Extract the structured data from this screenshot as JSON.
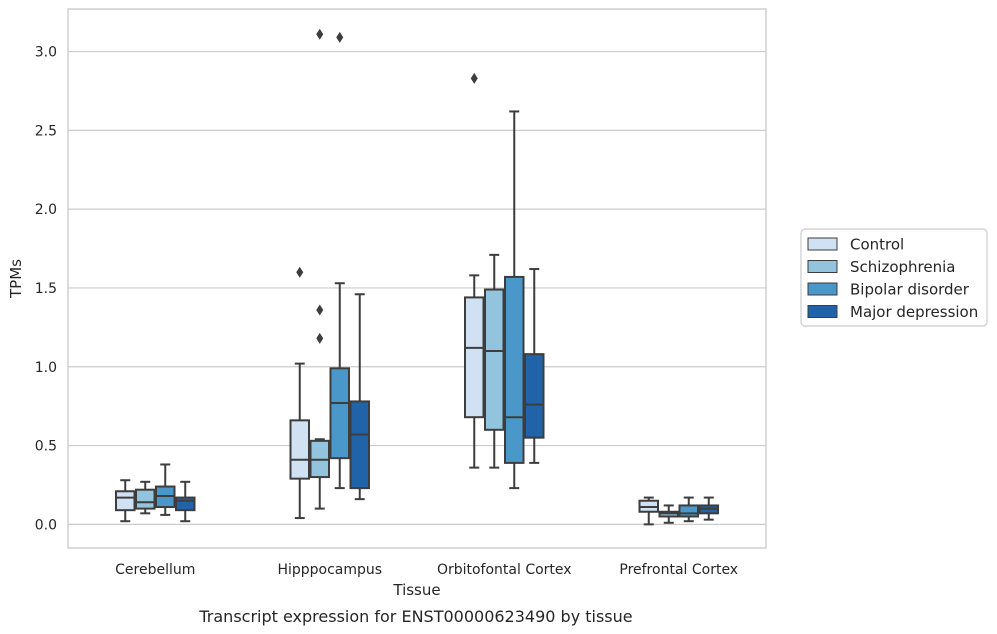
{
  "caption": "Transcript expression for ENST00000623490 by tissue",
  "chart_data": {
    "type": "boxplot",
    "xlabel": "Tissue",
    "ylabel": "TPMs",
    "ylim": [
      -0.15,
      3.27
    ],
    "yticks": [
      "0.0",
      "0.5",
      "1.0",
      "1.5",
      "2.0",
      "2.5",
      "3.0"
    ],
    "categories": [
      "Cerebellum",
      "Hipppocampus",
      "Orbitofontal Cortex",
      "Prefrontal Cortex"
    ],
    "grid": "horizontal",
    "legend_position": "right",
    "series": [
      {
        "name": "Control",
        "color": "#cfe1f2",
        "boxes": [
          {
            "whislo": 0.02,
            "q1": 0.09,
            "med": 0.17,
            "q3": 0.21,
            "whishi": 0.28,
            "fliers": []
          },
          {
            "whislo": 0.04,
            "q1": 0.29,
            "med": 0.41,
            "q3": 0.66,
            "whishi": 1.02,
            "fliers": [
              1.6
            ]
          },
          {
            "whislo": 0.36,
            "q1": 0.68,
            "med": 1.12,
            "q3": 1.44,
            "whishi": 1.58,
            "fliers": [
              2.83
            ]
          },
          {
            "whislo": 0.0,
            "q1": 0.08,
            "med": 0.11,
            "q3": 0.15,
            "whishi": 0.17,
            "fliers": []
          }
        ]
      },
      {
        "name": "Schizophrenia",
        "color": "#93c4de",
        "boxes": [
          {
            "whislo": 0.07,
            "q1": 0.1,
            "med": 0.14,
            "q3": 0.22,
            "whishi": 0.27,
            "fliers": []
          },
          {
            "whislo": 0.1,
            "q1": 0.3,
            "med": 0.41,
            "q3": 0.53,
            "whishi": 0.54,
            "fliers": [
              1.18,
              1.36,
              3.11
            ]
          },
          {
            "whislo": 0.36,
            "q1": 0.6,
            "med": 1.1,
            "q3": 1.49,
            "whishi": 1.71,
            "fliers": []
          },
          {
            "whislo": 0.01,
            "q1": 0.05,
            "med": 0.07,
            "q3": 0.08,
            "whishi": 0.12,
            "fliers": []
          }
        ]
      },
      {
        "name": "Bipolar disorder",
        "color": "#4a98c9",
        "boxes": [
          {
            "whislo": 0.06,
            "q1": 0.11,
            "med": 0.18,
            "q3": 0.24,
            "whishi": 0.38,
            "fliers": []
          },
          {
            "whislo": 0.23,
            "q1": 0.42,
            "med": 0.77,
            "q3": 0.99,
            "whishi": 1.53,
            "fliers": [
              3.09
            ]
          },
          {
            "whislo": 0.23,
            "q1": 0.39,
            "med": 0.68,
            "q3": 1.57,
            "whishi": 2.62,
            "fliers": []
          },
          {
            "whislo": 0.02,
            "q1": 0.05,
            "med": 0.07,
            "q3": 0.12,
            "whishi": 0.17,
            "fliers": []
          }
        ]
      },
      {
        "name": "Major depression",
        "color": "#2063a8",
        "boxes": [
          {
            "whislo": 0.02,
            "q1": 0.09,
            "med": 0.15,
            "q3": 0.17,
            "whishi": 0.27,
            "fliers": []
          },
          {
            "whislo": 0.16,
            "q1": 0.23,
            "med": 0.57,
            "q3": 0.78,
            "whishi": 1.46,
            "fliers": []
          },
          {
            "whislo": 0.39,
            "q1": 0.55,
            "med": 0.76,
            "q3": 1.08,
            "whishi": 1.62,
            "fliers": []
          },
          {
            "whislo": 0.03,
            "q1": 0.07,
            "med": 0.1,
            "q3": 0.12,
            "whishi": 0.17,
            "fliers": []
          }
        ]
      }
    ]
  }
}
